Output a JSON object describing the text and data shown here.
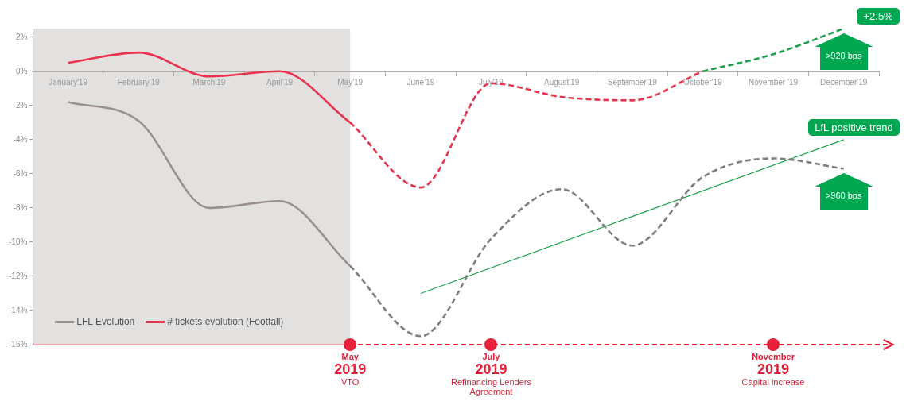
{
  "chart_data": {
    "type": "line",
    "categories": [
      "January'19",
      "February'19",
      "March'19",
      "April'19",
      "May'19",
      "June'19",
      "July'19",
      "August'19",
      "September'19",
      "October'19",
      "November '19",
      "December'19"
    ],
    "series": [
      {
        "name": "LFL Evolution",
        "color": "#9b9090",
        "values": [
          -1.8,
          -2.9,
          -8.0,
          -7.6,
          -11.4,
          null,
          null,
          null,
          null,
          null,
          null,
          null
        ]
      },
      {
        "name": "# tickets evolution (Footfall)",
        "color": "#e8344e",
        "values": [
          0.5,
          1.1,
          -0.3,
          0.0,
          -3.0,
          null,
          null,
          null,
          null,
          null,
          null,
          null
        ]
      },
      {
        "color": "#7f7f7f",
        "line_style": "dashed",
        "values": [
          null,
          null,
          null,
          null,
          -11.4,
          -15.5,
          -9.8,
          -6.9,
          -10.2,
          -6.2,
          -5.1,
          -5.7
        ]
      },
      {
        "color": "#e8344e",
        "line_style": "dashed",
        "values": [
          null,
          null,
          null,
          null,
          -3.0,
          -6.8,
          -0.7,
          -1.5,
          -1.7,
          0.0,
          null,
          null
        ]
      },
      {
        "color": "#1aa04a",
        "line_style": "dashed",
        "values": [
          null,
          null,
          null,
          null,
          null,
          null,
          null,
          null,
          null,
          0.0,
          1.0,
          2.5
        ]
      },
      {
        "type": "line",
        "color": "#1aa04a",
        "values": [
          null,
          null,
          null,
          null,
          null,
          -13.0,
          null,
          null,
          null,
          null,
          null,
          -4.0
        ]
      }
    ],
    "ylim": [
      -16,
      2.5
    ],
    "yticks": [
      {
        "value": -16,
        "label": "-16%"
      },
      {
        "value": -14,
        "label": "-14%"
      },
      {
        "value": -12,
        "label": "-12%"
      },
      {
        "value": -10,
        "label": "-10%"
      },
      {
        "value": -8,
        "label": "-8%"
      },
      {
        "value": -6,
        "label": "-6%"
      },
      {
        "value": -4,
        "label": "-4%"
      },
      {
        "value": -2,
        "label": "-2%"
      },
      {
        "value": 0,
        "label": "0%"
      },
      {
        "value": 2,
        "label": "2%"
      }
    ],
    "bands": [
      {
        "axis": "x",
        "from": "January'19",
        "to": "May'19",
        "color": "#e3e1e0"
      }
    ],
    "annotations": [
      {
        "text": "+2.5%",
        "x": "December'19",
        "y": 2.5
      },
      ">920 bps",
      {
        "text": "LfL positive trend",
        "x": "December'19",
        "y": -4.0
      },
      ">960 bps",
      {
        "text": "May\n2019\nVTO",
        "x": "May'19",
        "y": -16
      },
      {
        "text": "July\n2019\nRefinancing Lenders Agreement",
        "x": "July'19",
        "y": -16
      },
      {
        "text": "November\n2019\nCapital increase",
        "x": "November '19",
        "y": -16
      }
    ],
    "grid": false,
    "legend": "bottom left",
    "marker": "none",
    "line_style": "solid"
  }
}
